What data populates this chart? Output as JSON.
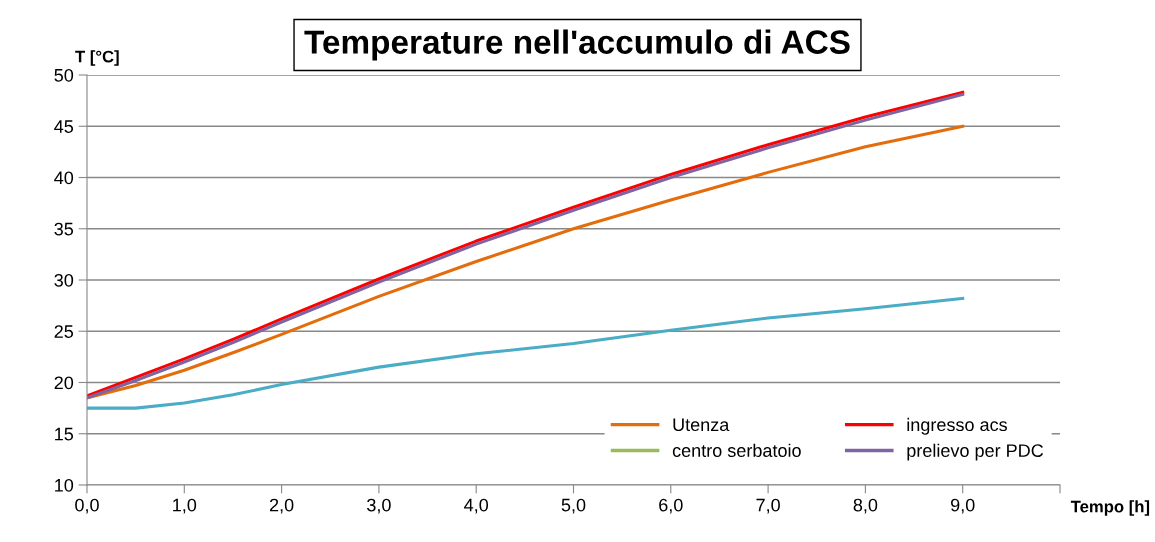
{
  "chart_data": {
    "type": "line",
    "title": "Temperature nell'accumulo di ACS",
    "xlabel": "Tempo [h]",
    "ylabel": "T [°C]",
    "x": [
      0,
      0.5,
      1,
      1.5,
      2,
      3,
      4,
      5,
      6,
      7,
      8,
      9
    ],
    "series": [
      {
        "name": "Utenza",
        "color": "#e46c0a",
        "values": [
          18.5,
          19.7,
          21.2,
          22.9,
          24.7,
          28.4,
          31.8,
          35.0,
          37.8,
          40.5,
          43.0,
          45.0
        ]
      },
      {
        "name": "ingresso acs",
        "color": "#ff0000",
        "values": [
          18.7,
          20.5,
          22.3,
          24.2,
          26.2,
          30.1,
          33.8,
          37.1,
          40.3,
          43.2,
          45.9,
          48.3
        ]
      },
      {
        "name": "centro serbatoio",
        "color": "#9bbb59",
        "values": [
          null,
          null,
          null,
          null,
          null,
          null,
          null,
          null,
          null,
          null,
          null,
          null
        ]
      },
      {
        "name": "prelievo per PDC",
        "color": "#8064a2",
        "values": [
          18.5,
          20.2,
          22.0,
          23.9,
          25.9,
          29.8,
          33.5,
          36.8,
          40.0,
          42.9,
          45.6,
          48.1
        ]
      },
      {
        "color": "#4bacc6",
        "values": [
          17.5,
          17.5,
          18.0,
          18.8,
          19.8,
          21.5,
          22.8,
          23.8,
          25.1,
          26.3,
          27.2,
          28.2
        ]
      }
    ],
    "xlim": [
      0,
      10
    ],
    "xticks": [
      {
        "value": 0,
        "label": "0,0"
      },
      {
        "value": 1,
        "label": "1,0"
      },
      {
        "value": 2,
        "label": "2,0"
      },
      {
        "value": 3,
        "label": "3,0"
      },
      {
        "value": 4,
        "label": "4,0"
      },
      {
        "value": 5,
        "label": "5,0"
      },
      {
        "value": 6,
        "label": "6,0"
      },
      {
        "value": 7,
        "label": "7,0"
      },
      {
        "value": 8,
        "label": "8,0"
      },
      {
        "value": 9,
        "label": "9,0"
      },
      {
        "value": 10,
        "label": null
      }
    ],
    "ylim": [
      10,
      50
    ],
    "yticks": [
      10,
      15,
      20,
      25,
      30,
      35,
      40,
      45,
      50
    ],
    "grid": "y",
    "legend": "bottom right",
    "marker": "none",
    "line_style": "solid"
  }
}
